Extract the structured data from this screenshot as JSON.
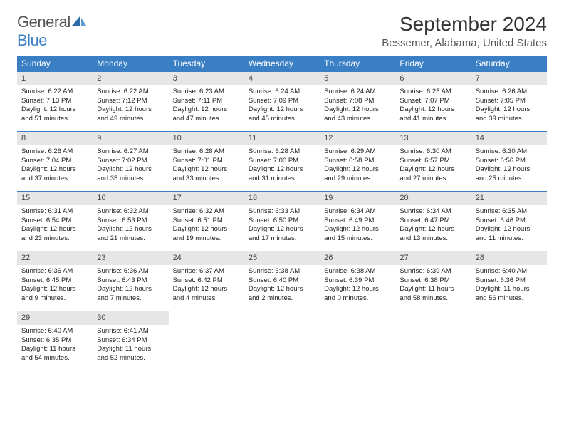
{
  "brand": {
    "part1": "General",
    "part2": "Blue"
  },
  "title": "September 2024",
  "location": "Bessemer, Alabama, United States",
  "colors": {
    "header_bg": "#3a7fc4",
    "daynum_bg": "#e6e6e6",
    "border": "#3a7fc4",
    "text": "#222222",
    "title": "#333333",
    "location_text": "#555555"
  },
  "weekdays": [
    "Sunday",
    "Monday",
    "Tuesday",
    "Wednesday",
    "Thursday",
    "Friday",
    "Saturday"
  ],
  "weeks": [
    [
      {
        "n": "1",
        "sr": "Sunrise: 6:22 AM",
        "ss": "Sunset: 7:13 PM",
        "d1": "Daylight: 12 hours",
        "d2": "and 51 minutes."
      },
      {
        "n": "2",
        "sr": "Sunrise: 6:22 AM",
        "ss": "Sunset: 7:12 PM",
        "d1": "Daylight: 12 hours",
        "d2": "and 49 minutes."
      },
      {
        "n": "3",
        "sr": "Sunrise: 6:23 AM",
        "ss": "Sunset: 7:11 PM",
        "d1": "Daylight: 12 hours",
        "d2": "and 47 minutes."
      },
      {
        "n": "4",
        "sr": "Sunrise: 6:24 AM",
        "ss": "Sunset: 7:09 PM",
        "d1": "Daylight: 12 hours",
        "d2": "and 45 minutes."
      },
      {
        "n": "5",
        "sr": "Sunrise: 6:24 AM",
        "ss": "Sunset: 7:08 PM",
        "d1": "Daylight: 12 hours",
        "d2": "and 43 minutes."
      },
      {
        "n": "6",
        "sr": "Sunrise: 6:25 AM",
        "ss": "Sunset: 7:07 PM",
        "d1": "Daylight: 12 hours",
        "d2": "and 41 minutes."
      },
      {
        "n": "7",
        "sr": "Sunrise: 6:26 AM",
        "ss": "Sunset: 7:05 PM",
        "d1": "Daylight: 12 hours",
        "d2": "and 39 minutes."
      }
    ],
    [
      {
        "n": "8",
        "sr": "Sunrise: 6:26 AM",
        "ss": "Sunset: 7:04 PM",
        "d1": "Daylight: 12 hours",
        "d2": "and 37 minutes."
      },
      {
        "n": "9",
        "sr": "Sunrise: 6:27 AM",
        "ss": "Sunset: 7:02 PM",
        "d1": "Daylight: 12 hours",
        "d2": "and 35 minutes."
      },
      {
        "n": "10",
        "sr": "Sunrise: 6:28 AM",
        "ss": "Sunset: 7:01 PM",
        "d1": "Daylight: 12 hours",
        "d2": "and 33 minutes."
      },
      {
        "n": "11",
        "sr": "Sunrise: 6:28 AM",
        "ss": "Sunset: 7:00 PM",
        "d1": "Daylight: 12 hours",
        "d2": "and 31 minutes."
      },
      {
        "n": "12",
        "sr": "Sunrise: 6:29 AM",
        "ss": "Sunset: 6:58 PM",
        "d1": "Daylight: 12 hours",
        "d2": "and 29 minutes."
      },
      {
        "n": "13",
        "sr": "Sunrise: 6:30 AM",
        "ss": "Sunset: 6:57 PM",
        "d1": "Daylight: 12 hours",
        "d2": "and 27 minutes."
      },
      {
        "n": "14",
        "sr": "Sunrise: 6:30 AM",
        "ss": "Sunset: 6:56 PM",
        "d1": "Daylight: 12 hours",
        "d2": "and 25 minutes."
      }
    ],
    [
      {
        "n": "15",
        "sr": "Sunrise: 6:31 AM",
        "ss": "Sunset: 6:54 PM",
        "d1": "Daylight: 12 hours",
        "d2": "and 23 minutes."
      },
      {
        "n": "16",
        "sr": "Sunrise: 6:32 AM",
        "ss": "Sunset: 6:53 PM",
        "d1": "Daylight: 12 hours",
        "d2": "and 21 minutes."
      },
      {
        "n": "17",
        "sr": "Sunrise: 6:32 AM",
        "ss": "Sunset: 6:51 PM",
        "d1": "Daylight: 12 hours",
        "d2": "and 19 minutes."
      },
      {
        "n": "18",
        "sr": "Sunrise: 6:33 AM",
        "ss": "Sunset: 6:50 PM",
        "d1": "Daylight: 12 hours",
        "d2": "and 17 minutes."
      },
      {
        "n": "19",
        "sr": "Sunrise: 6:34 AM",
        "ss": "Sunset: 6:49 PM",
        "d1": "Daylight: 12 hours",
        "d2": "and 15 minutes."
      },
      {
        "n": "20",
        "sr": "Sunrise: 6:34 AM",
        "ss": "Sunset: 6:47 PM",
        "d1": "Daylight: 12 hours",
        "d2": "and 13 minutes."
      },
      {
        "n": "21",
        "sr": "Sunrise: 6:35 AM",
        "ss": "Sunset: 6:46 PM",
        "d1": "Daylight: 12 hours",
        "d2": "and 11 minutes."
      }
    ],
    [
      {
        "n": "22",
        "sr": "Sunrise: 6:36 AM",
        "ss": "Sunset: 6:45 PM",
        "d1": "Daylight: 12 hours",
        "d2": "and 9 minutes."
      },
      {
        "n": "23",
        "sr": "Sunrise: 6:36 AM",
        "ss": "Sunset: 6:43 PM",
        "d1": "Daylight: 12 hours",
        "d2": "and 7 minutes."
      },
      {
        "n": "24",
        "sr": "Sunrise: 6:37 AM",
        "ss": "Sunset: 6:42 PM",
        "d1": "Daylight: 12 hours",
        "d2": "and 4 minutes."
      },
      {
        "n": "25",
        "sr": "Sunrise: 6:38 AM",
        "ss": "Sunset: 6:40 PM",
        "d1": "Daylight: 12 hours",
        "d2": "and 2 minutes."
      },
      {
        "n": "26",
        "sr": "Sunrise: 6:38 AM",
        "ss": "Sunset: 6:39 PM",
        "d1": "Daylight: 12 hours",
        "d2": "and 0 minutes."
      },
      {
        "n": "27",
        "sr": "Sunrise: 6:39 AM",
        "ss": "Sunset: 6:38 PM",
        "d1": "Daylight: 11 hours",
        "d2": "and 58 minutes."
      },
      {
        "n": "28",
        "sr": "Sunrise: 6:40 AM",
        "ss": "Sunset: 6:36 PM",
        "d1": "Daylight: 11 hours",
        "d2": "and 56 minutes."
      }
    ],
    [
      {
        "n": "29",
        "sr": "Sunrise: 6:40 AM",
        "ss": "Sunset: 6:35 PM",
        "d1": "Daylight: 11 hours",
        "d2": "and 54 minutes."
      },
      {
        "n": "30",
        "sr": "Sunrise: 6:41 AM",
        "ss": "Sunset: 6:34 PM",
        "d1": "Daylight: 11 hours",
        "d2": "and 52 minutes."
      },
      null,
      null,
      null,
      null,
      null
    ]
  ]
}
